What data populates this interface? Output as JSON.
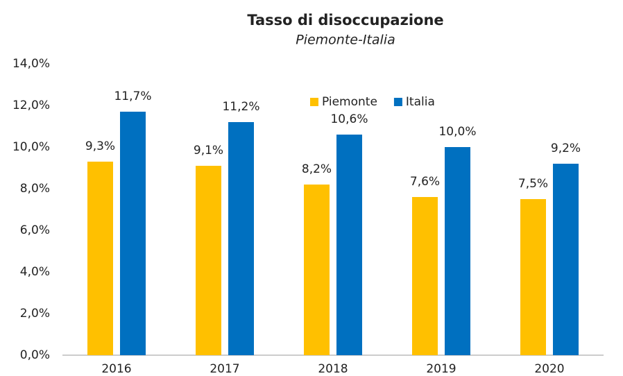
{
  "chart_data": {
    "type": "bar",
    "title": "Tasso di disoccupazione",
    "subtitle": "Piemonte-Italia",
    "categories": [
      "2016",
      "2017",
      "2018",
      "2019",
      "2020"
    ],
    "series": [
      {
        "name": "Piemonte",
        "color": "#ffc000",
        "values": [
          9.3,
          9.1,
          8.2,
          7.6,
          7.5
        ],
        "value_labels": [
          "9,3%",
          "9,1%",
          "8,2%",
          "7,6%",
          "7,5%"
        ]
      },
      {
        "name": "Italia",
        "color": "#0070c0",
        "values": [
          11.7,
          11.2,
          10.6,
          10.0,
          9.2
        ],
        "value_labels": [
          "11,7%",
          "11,2%",
          "10,6%",
          "10,0%",
          "9,2%"
        ]
      }
    ],
    "ylim": [
      0,
      14
    ],
    "yticks": [
      {
        "value": 0,
        "label": "0,0%"
      },
      {
        "value": 2,
        "label": "2,0%"
      },
      {
        "value": 4,
        "label": "4,0%"
      },
      {
        "value": 6,
        "label": "6,0%"
      },
      {
        "value": 8,
        "label": "8,0%"
      },
      {
        "value": 10,
        "label": "10,0%"
      },
      {
        "value": 12,
        "label": "12,0%"
      },
      {
        "value": 14,
        "label": "14,0%"
      }
    ],
    "grid": false,
    "legend": "top"
  }
}
